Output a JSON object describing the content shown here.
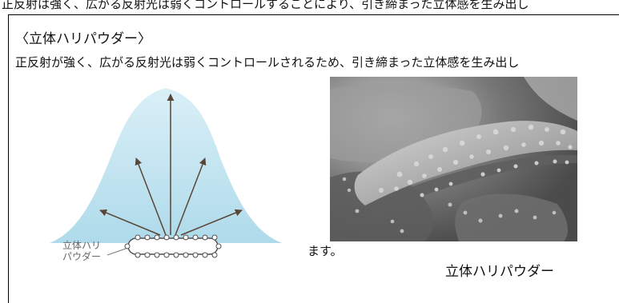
{
  "header_fragment": "正反射は強く、広がる反射光は弱くコントロールすることにより、引き締まった立体感を生み出し",
  "section": {
    "title": "〈立体ハリパウダー〉",
    "description": "正反射が強く、広がる反射光は弱くコントロールされるため、引き締まった立体感を生み出し",
    "continuation": "ます。"
  },
  "diagram": {
    "particle_label": "立体ハリ\nパウダー"
  },
  "photo": {
    "caption": "立体ハリパウダー"
  },
  "colors": {
    "glow_top": "#d7eef6",
    "glow_bottom": "#a7d7e9",
    "arrow": "#5a4636"
  }
}
